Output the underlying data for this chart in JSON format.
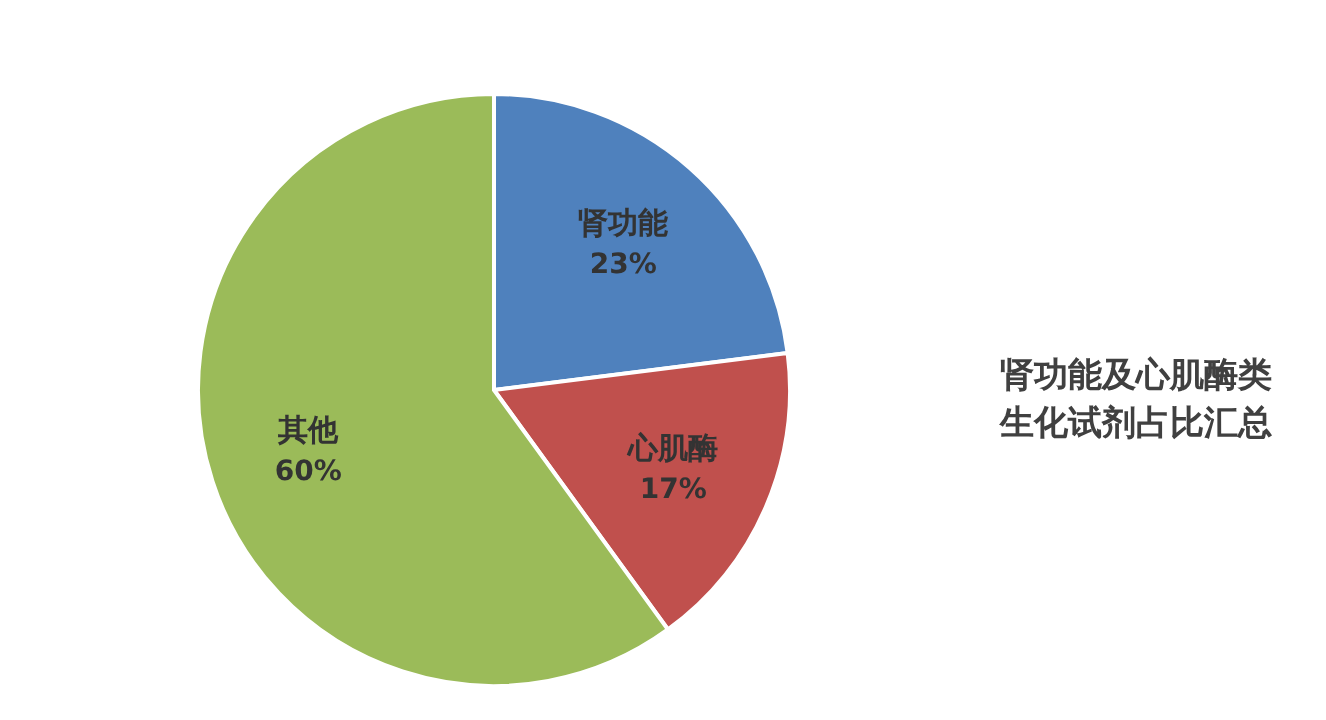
{
  "chart_data": {
    "type": "pie",
    "title": "肾功能及心肌酶类生化试剂占比汇总",
    "categories": [
      "肾功能",
      "心肌酶",
      "其他"
    ],
    "values": [
      23,
      17,
      60
    ],
    "colors": [
      "#4f81bd",
      "#c0504d",
      "#9bbb59"
    ],
    "value_labels": [
      "23%",
      "17%",
      "60%"
    ],
    "legend": false
  }
}
